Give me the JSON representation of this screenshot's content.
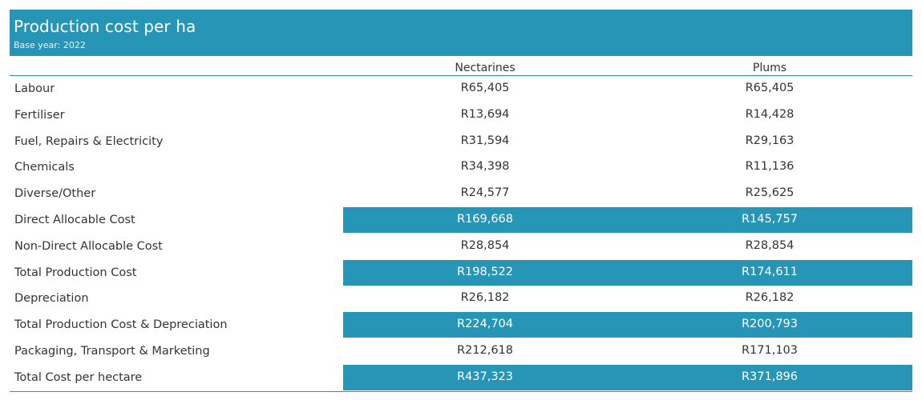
{
  "header": {
    "title": "Production cost per ha",
    "subtitle": "Base year: 2022"
  },
  "columns": [
    "Nectarines",
    "Plums"
  ],
  "colors": {
    "accent": "#2795b5",
    "text": "#333333"
  },
  "rows": [
    {
      "label": "Labour",
      "nectarines": "R65,405",
      "plums": "R65,405",
      "highlight": false
    },
    {
      "label": "Fertiliser",
      "nectarines": "R13,694",
      "plums": "R14,428",
      "highlight": false
    },
    {
      "label": "Fuel, Repairs & Electricity",
      "nectarines": "R31,594",
      "plums": "R29,163",
      "highlight": false
    },
    {
      "label": "Chemicals",
      "nectarines": "R34,398",
      "plums": "R11,136",
      "highlight": false
    },
    {
      "label": "Diverse/Other",
      "nectarines": "R24,577",
      "plums": "R25,625",
      "highlight": false
    },
    {
      "label": "Direct Allocable Cost",
      "nectarines": "R169,668",
      "plums": "R145,757",
      "highlight": true
    },
    {
      "label": "Non-Direct Allocable Cost",
      "nectarines": "R28,854",
      "plums": "R28,854",
      "highlight": false
    },
    {
      "label": "Total Production Cost",
      "nectarines": "R198,522",
      "plums": "R174,611",
      "highlight": true
    },
    {
      "label": "Depreciation",
      "nectarines": "R26,182",
      "plums": "R26,182",
      "highlight": false
    },
    {
      "label": "Total Production Cost & Depreciation",
      "nectarines": "R224,704",
      "plums": "R200,793",
      "highlight": true
    },
    {
      "label": "Packaging, Transport & Marketing",
      "nectarines": "R212,618",
      "plums": "R171,103",
      "highlight": false
    },
    {
      "label": "Total Cost per hectare",
      "nectarines": "R437,323",
      "plums": "R371,896",
      "highlight": true
    }
  ]
}
